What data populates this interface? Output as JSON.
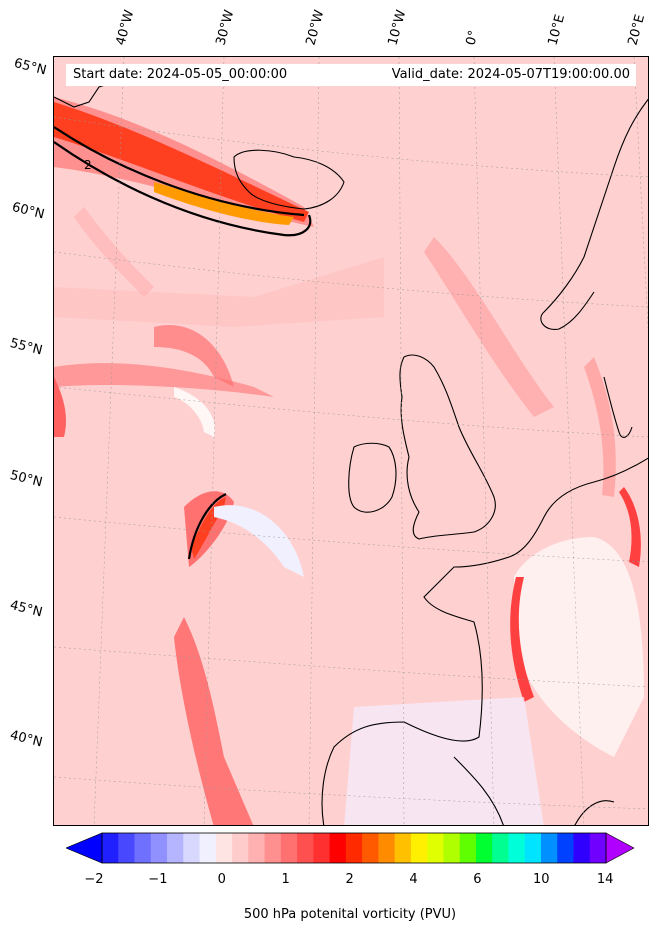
{
  "map": {
    "start_date": "Start date: 2024-05-05_00:00:00",
    "valid_date": "Valid_date: 2024-05-07T19:00:00.00",
    "lat_labels": [
      "65°N",
      "60°N",
      "55°N",
      "50°N",
      "45°N",
      "40°N"
    ],
    "lon_labels": [
      "40°W",
      "30°W",
      "20°W",
      "10°W",
      "0°",
      "10°E",
      "20°E"
    ],
    "field": "potential vorticity",
    "level": "500 hPa",
    "contour_value": "2"
  },
  "colorbar": {
    "label": "500 hPa potenital vorticity (PVU)",
    "tick_labels": [
      "−2",
      "−1",
      "0",
      "1",
      "2",
      "4",
      "6",
      "10",
      "14"
    ],
    "colors": [
      "#0000ff",
      "#2020ff",
      "#4848ff",
      "#7070ff",
      "#9090ff",
      "#b4b4ff",
      "#d8d8ff",
      "#f0f0ff",
      "#ffe4e4",
      "#ffcccc",
      "#ffb0b0",
      "#ff9090",
      "#ff7070",
      "#ff5050",
      "#ff3030",
      "#ff0000",
      "#ff2a00",
      "#ff5a00",
      "#ff8c00",
      "#ffc000",
      "#ffef00",
      "#e0ff00",
      "#b0ff00",
      "#60ff00",
      "#00ff30",
      "#00ff90",
      "#00ffd8",
      "#00e4ff",
      "#0090ff",
      "#0040ff",
      "#3000ff",
      "#7000ff",
      "#b000ff"
    ],
    "extend": "both"
  }
}
